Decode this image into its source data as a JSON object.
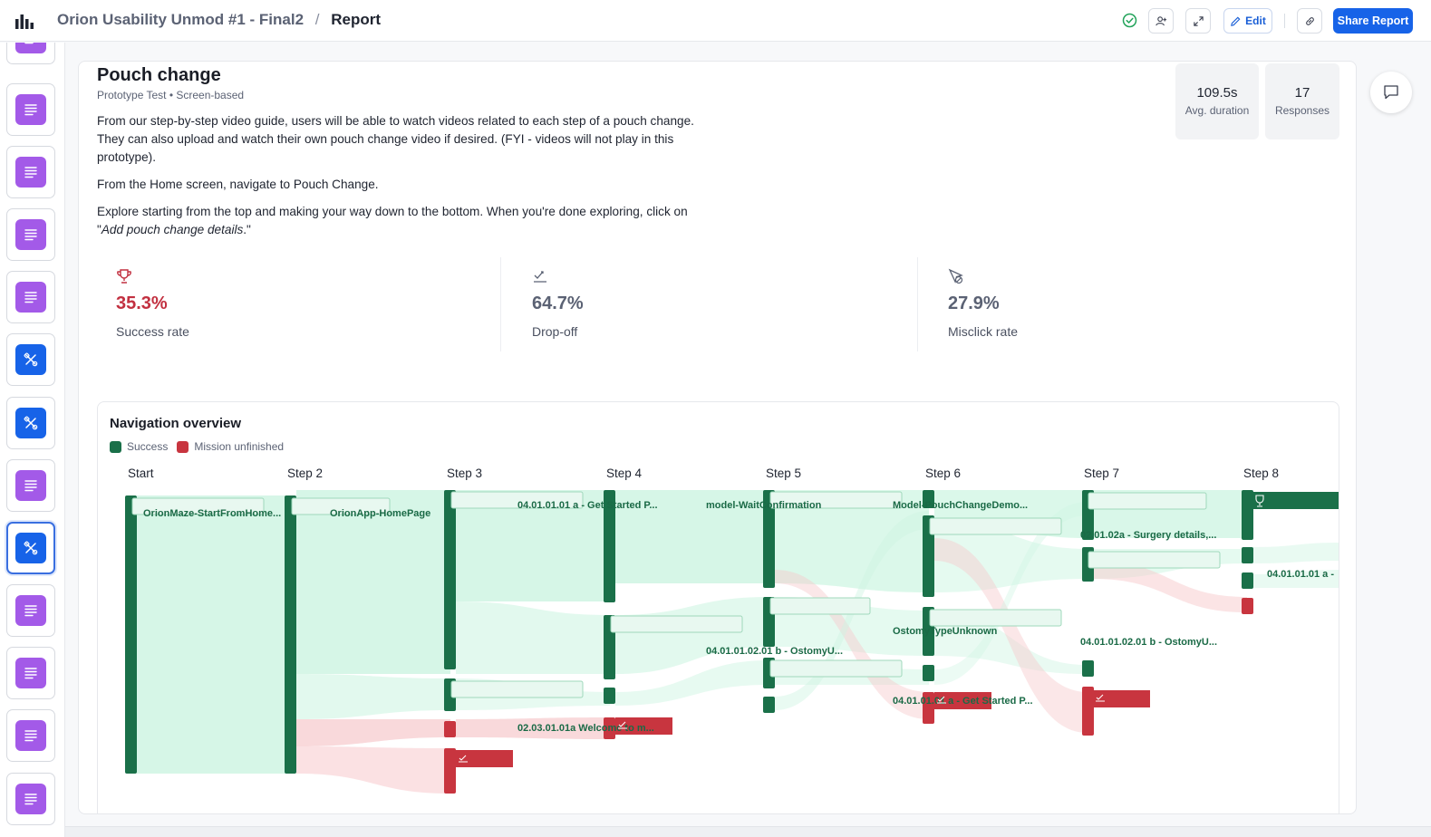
{
  "header": {
    "project_title": "Orion Usability Unmod #1 - Final2",
    "separator": "/",
    "current_page": "Report",
    "edit_label": "Edit",
    "share_label": "Share Report",
    "icons": [
      "logo-icon",
      "check-circle-icon",
      "add-user-icon",
      "expand-icon",
      "pencil-icon",
      "link-icon"
    ]
  },
  "sidebar": {
    "thumbnails": [
      {
        "type": "text-block",
        "color": "#a35ae8",
        "icon": "lines-icon"
      },
      {
        "type": "text-block",
        "color": "#a35ae8",
        "icon": "lines-icon"
      },
      {
        "type": "text-block",
        "color": "#a35ae8",
        "icon": "lines-icon"
      },
      {
        "type": "text-block",
        "color": "#a35ae8",
        "icon": "lines-icon"
      },
      {
        "type": "text-block",
        "color": "#a35ae8",
        "icon": "lines-icon"
      },
      {
        "type": "prototype-test",
        "color": "#1763e8",
        "icon": "tools-icon"
      },
      {
        "type": "prototype-test",
        "color": "#1763e8",
        "icon": "tools-icon"
      },
      {
        "type": "text-block",
        "color": "#a35ae8",
        "icon": "lines-icon"
      },
      {
        "type": "prototype-test",
        "color": "#1763e8",
        "icon": "tools-icon",
        "active": true
      },
      {
        "type": "text-block",
        "color": "#a35ae8",
        "icon": "lines-icon"
      },
      {
        "type": "text-block",
        "color": "#a35ae8",
        "icon": "lines-icon"
      },
      {
        "type": "text-block",
        "color": "#a35ae8",
        "icon": "lines-icon"
      },
      {
        "type": "text-block",
        "color": "#a35ae8",
        "icon": "lines-icon"
      }
    ]
  },
  "task": {
    "title": "Pouch change",
    "subtitle": "Prototype Test • Screen-based",
    "paragraph1": "From our step-by-step video guide, users will be able to watch videos related to each step of a pouch change. They can also upload and watch their own pouch change video if desired. (FYI - videos will not play in this prototype).",
    "paragraph2": "From the Home screen, navigate to Pouch Change.",
    "paragraph3_before": "Explore starting from the top and making your way down to the bottom. When you're done exploring, click on \"",
    "paragraph3_em": "Add pouch change details",
    "paragraph3_after": ".\""
  },
  "stats": {
    "avg_duration_value": "109.5s",
    "avg_duration_label": "Avg. duration",
    "responses_value": "17",
    "responses_label": "Responses"
  },
  "metrics": {
    "success_value": "35.3%",
    "success_label": "Success rate",
    "success_color": "#c23040",
    "dropoff_value": "64.7%",
    "dropoff_label": "Drop-off",
    "misclick_value": "27.9%",
    "misclick_label": "Misclick rate",
    "neutral_color": "#5b6274"
  },
  "navigation": {
    "title": "Navigation overview",
    "legend_success": "Success",
    "legend_unfinished": "Mission unfinished",
    "colors": {
      "success": "#1a7049",
      "unfinished": "#c8353f",
      "flow_success": "#cff5e3",
      "flow_unfinished": "#f7c9cc"
    },
    "steps": [
      "Start",
      "Step 2",
      "Step 3",
      "Step 4",
      "Step 5",
      "Step 6",
      "Step 7",
      "Step 8"
    ],
    "node_labels": [
      "OrionMaze-StartFromHome...",
      "OrionApp-HomePage",
      "04.01.01.01 a - Get Started P...",
      "model-WaitConfirmation",
      "Model-PouchChangeDemo...",
      "02.01.02a - Surgery details,...",
      "04.01.01.01 a -",
      "04.01.01.02.01 b - OstomyU...",
      "OstomyTypeUnknown",
      "04.01.01.02.01 b - OstomyU...",
      "04.01.01.01 a - Get Started P...",
      "02.03.01.01a Welcome to m..."
    ]
  }
}
